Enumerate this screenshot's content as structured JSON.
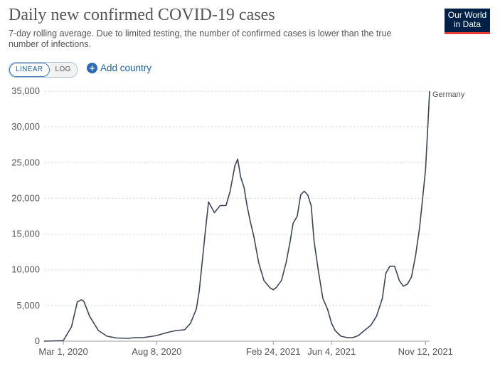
{
  "header": {
    "title": "Daily new confirmed COVID-19 cases",
    "subtitle": "7-day rolling average. Due to limited testing, the number of confirmed cases is lower than the true number of infections.",
    "logo_line1": "Our World",
    "logo_line2": "in Data"
  },
  "controls": {
    "linear_label": "LINEAR",
    "log_label": "LOG",
    "add_country_label": "Add country"
  },
  "colors": {
    "line": "#3b4556",
    "grid": "#dddddd",
    "accent": "#2f6bb5"
  },
  "chart_data": {
    "type": "line",
    "title": "Daily new confirmed COVID-19 cases",
    "subtitle": "7-day rolling average. Due to limited testing, the number of confirmed cases is lower than the true number of infections.",
    "xlabel": "",
    "ylabel": "",
    "y_ticks": [
      0,
      5000,
      10000,
      15000,
      20000,
      25000,
      30000,
      35000
    ],
    "y_tick_labels": [
      "0",
      "5,000",
      "10,000",
      "15,000",
      "20,000",
      "25,000",
      "30,000",
      "35,000"
    ],
    "ylim": [
      0,
      35000
    ],
    "xlim": [
      "2020-01-28",
      "2021-11-19"
    ],
    "x_ticks": [
      "2020-03-01",
      "2020-08-08",
      "2021-02-24",
      "2021-06-04",
      "2021-11-12"
    ],
    "x_tick_labels": [
      "Mar 1, 2020",
      "Aug 8, 2020",
      "Feb 24, 2021",
      "Jun 4, 2021",
      "Nov 12, 2021"
    ],
    "grid": true,
    "legend": "end-label",
    "series": [
      {
        "name": "Germany",
        "x": [
          "2020-01-28",
          "2020-03-01",
          "2020-03-15",
          "2020-03-25",
          "2020-04-01",
          "2020-04-05",
          "2020-04-15",
          "2020-04-30",
          "2020-05-15",
          "2020-06-01",
          "2020-06-20",
          "2020-07-01",
          "2020-07-15",
          "2020-08-01",
          "2020-08-08",
          "2020-08-25",
          "2020-09-10",
          "2020-09-25",
          "2020-10-05",
          "2020-10-15",
          "2020-10-20",
          "2020-10-25",
          "2020-10-30",
          "2020-11-05",
          "2020-11-15",
          "2020-11-25",
          "2020-12-05",
          "2020-12-12",
          "2020-12-20",
          "2020-12-25",
          "2020-12-30",
          "2021-01-05",
          "2021-01-10",
          "2021-01-15",
          "2021-01-22",
          "2021-01-30",
          "2021-02-08",
          "2021-02-18",
          "2021-02-24",
          "2021-03-01",
          "2021-03-10",
          "2021-03-18",
          "2021-03-25",
          "2021-03-30",
          "2021-04-06",
          "2021-04-12",
          "2021-04-18",
          "2021-04-24",
          "2021-04-30",
          "2021-05-05",
          "2021-05-12",
          "2021-05-20",
          "2021-05-28",
          "2021-06-04",
          "2021-06-10",
          "2021-06-20",
          "2021-07-01",
          "2021-07-10",
          "2021-07-20",
          "2021-07-30",
          "2021-08-10",
          "2021-08-20",
          "2021-08-30",
          "2021-09-05",
          "2021-09-12",
          "2021-09-20",
          "2021-09-28",
          "2021-10-05",
          "2021-10-12",
          "2021-10-19",
          "2021-10-26",
          "2021-11-02",
          "2021-11-07",
          "2021-11-12",
          "2021-11-16",
          "2021-11-19"
        ],
        "values": [
          0,
          100,
          2000,
          5500,
          5800,
          5600,
          3500,
          1500,
          700,
          450,
          400,
          500,
          500,
          700,
          800,
          1200,
          1500,
          1600,
          2500,
          4500,
          7000,
          11000,
          15000,
          19500,
          18000,
          19000,
          19000,
          21000,
          24500,
          25500,
          23000,
          21500,
          19000,
          17000,
          14500,
          11000,
          8500,
          7500,
          7200,
          7500,
          8500,
          11000,
          14000,
          16500,
          17500,
          20500,
          21000,
          20500,
          19000,
          14000,
          10000,
          6000,
          4500,
          2500,
          1500,
          700,
          500,
          500,
          800,
          1500,
          2200,
          3500,
          6000,
          9500,
          10500,
          10500,
          8500,
          7700,
          8000,
          9000,
          12000,
          16000,
          20000,
          24000,
          30000,
          35000
        ]
      }
    ]
  }
}
